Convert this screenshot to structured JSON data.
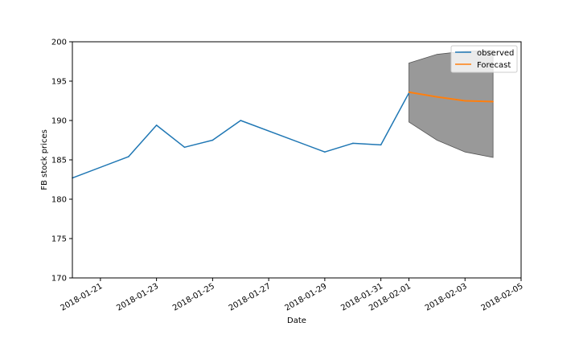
{
  "chart_data": {
    "type": "line",
    "xlabel": "Date",
    "ylabel": "FB stock prices",
    "xlim": [
      "2018-01-20",
      "2018-02-05"
    ],
    "ylim": [
      170,
      200
    ],
    "x_ticks": [
      "2018-01-21",
      "2018-01-23",
      "2018-01-25",
      "2018-01-27",
      "2018-01-29",
      "2018-01-31",
      "2018-02-01",
      "2018-02-03",
      "2018-02-05"
    ],
    "y_ticks": [
      "170",
      "175",
      "180",
      "185",
      "190",
      "195",
      "200"
    ],
    "legend_position": "top-right",
    "grid": false,
    "series": [
      {
        "name": "observed",
        "color": "#1f77b4",
        "x": [
          "2018-01-20",
          "2018-01-22",
          "2018-01-23",
          "2018-01-24",
          "2018-01-25",
          "2018-01-26",
          "2018-01-29",
          "2018-01-30",
          "2018-01-31",
          "2018-02-01"
        ],
        "y": [
          182.7,
          185.4,
          189.4,
          186.6,
          187.5,
          190.0,
          186.0,
          187.1,
          186.9,
          193.5
        ]
      },
      {
        "name": "Forecast",
        "color": "#ff7f0e",
        "x": [
          "2018-02-01",
          "2018-02-02",
          "2018-02-03",
          "2018-02-04"
        ],
        "y": [
          193.6,
          193.0,
          192.5,
          192.4
        ]
      }
    ],
    "confidence_band": {
      "color": "#7f7f7f",
      "x": [
        "2018-02-01",
        "2018-02-02",
        "2018-02-03",
        "2018-02-04"
      ],
      "lower": [
        189.8,
        187.5,
        186.0,
        185.3
      ],
      "upper": [
        197.3,
        198.4,
        198.8,
        198.9
      ]
    }
  }
}
